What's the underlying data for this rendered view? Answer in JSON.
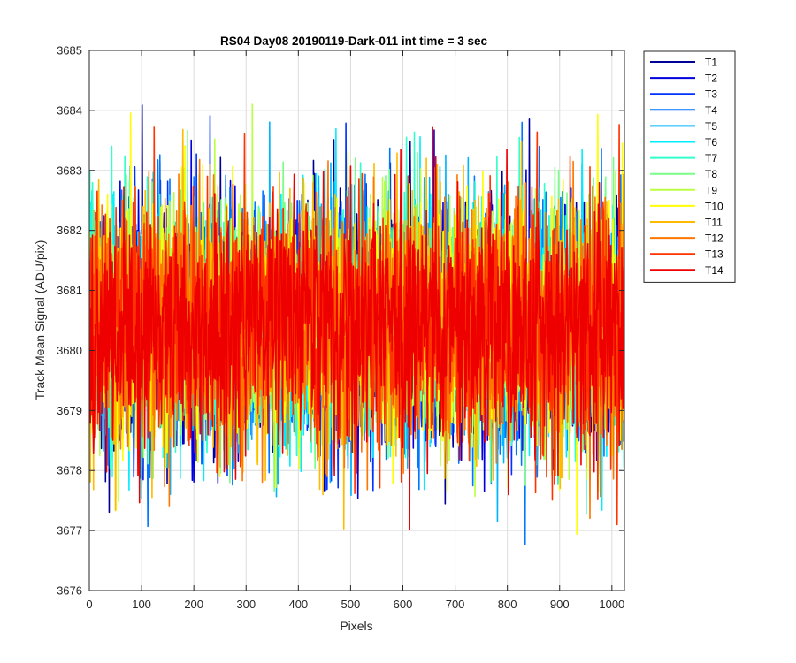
{
  "chart_data": {
    "type": "line",
    "title": "RS04 Day08 20190119-Dark-011 int time = 3 sec",
    "xlabel": "Pixels",
    "ylabel": "Track Mean Signal (ADU/pix)",
    "xlim": [
      0,
      1024
    ],
    "ylim": [
      3676,
      3685
    ],
    "xticks": [
      0,
      100,
      200,
      300,
      400,
      500,
      600,
      700,
      800,
      900,
      1000
    ],
    "yticks": [
      3676,
      3677,
      3678,
      3679,
      3680,
      3681,
      3682,
      3683,
      3684,
      3685
    ],
    "grid": true,
    "legend_position": "outside-top-right",
    "points_per_series": 1024,
    "series_mean": 3680.4,
    "series_std": 1.0,
    "series_min_observed": 3676.45,
    "series_max_observed": 3684.1,
    "series": [
      {
        "name": "T1",
        "color": "#000099"
      },
      {
        "name": "T2",
        "color": "#0000dd"
      },
      {
        "name": "T3",
        "color": "#0033ff"
      },
      {
        "name": "T4",
        "color": "#0077ff"
      },
      {
        "name": "T5",
        "color": "#00b4ff"
      },
      {
        "name": "T6",
        "color": "#00eeff"
      },
      {
        "name": "T7",
        "color": "#33ffcc"
      },
      {
        "name": "T8",
        "color": "#77ff88"
      },
      {
        "name": "T9",
        "color": "#bbff44"
      },
      {
        "name": "T10",
        "color": "#ffff00"
      },
      {
        "name": "T11",
        "color": "#ffbb00"
      },
      {
        "name": "T12",
        "color": "#ff7700"
      },
      {
        "name": "T13",
        "color": "#ff3300"
      },
      {
        "name": "T14",
        "color": "#ee0000"
      }
    ]
  }
}
